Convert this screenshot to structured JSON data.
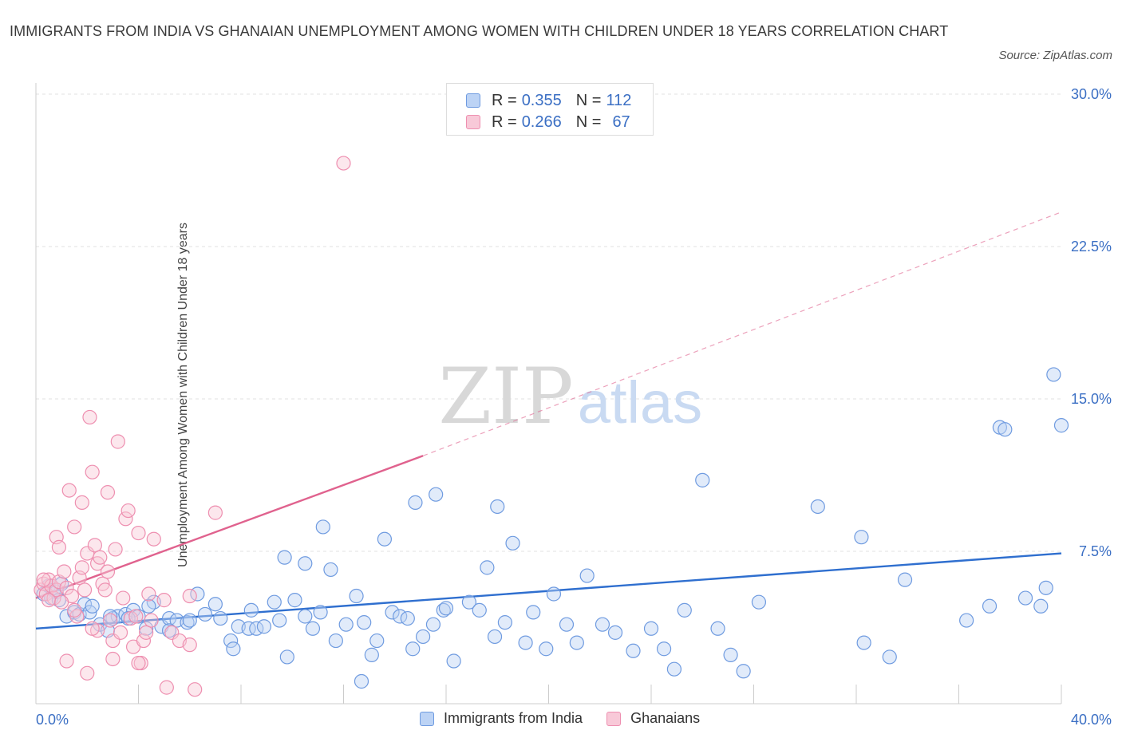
{
  "header": {
    "title": "IMMIGRANTS FROM INDIA VS GHANAIAN UNEMPLOYMENT AMONG WOMEN WITH CHILDREN UNDER 18 YEARS CORRELATION CHART",
    "source": "Source: ZipAtlas.com"
  },
  "legend": {
    "r_label": "R =",
    "n_label": "N =",
    "india_r": "0.355",
    "india_n": "112",
    "ghana_r": "0.266",
    "ghana_n": "67"
  },
  "watermark": {
    "zip": "ZIP",
    "atlas": "atlas"
  },
  "chart_data": {
    "type": "scatter",
    "ylabel": "Unemployment Among Women with Children Under 18 years",
    "xlim": [
      0,
      40
    ],
    "ylim": [
      0,
      30
    ],
    "x_ticks": [
      "0.0%",
      "40.0%"
    ],
    "y_ticks": [
      {
        "value": 7.5,
        "label": "7.5%"
      },
      {
        "value": 15,
        "label": "15.0%"
      },
      {
        "value": 22.5,
        "label": "22.5%"
      },
      {
        "value": 30,
        "label": "30.0%"
      }
    ],
    "grid": true,
    "series": [
      {
        "name": "Immigrants from India",
        "color": "#6f9be0",
        "fill": "#bcd3f5",
        "trend": {
          "x0": 0,
          "y0": 3.7,
          "x1": 40,
          "y1": 7.4,
          "color": "#2f6fcf"
        },
        "points": [
          [
            0.3,
            5.4
          ],
          [
            0.5,
            5.8
          ],
          [
            0.6,
            5.2
          ],
          [
            0.7,
            5.6
          ],
          [
            0.8,
            5.5
          ],
          [
            0.9,
            5.1
          ],
          [
            1.0,
            5.9
          ],
          [
            1.2,
            4.3
          ],
          [
            1.5,
            4.5
          ],
          [
            1.7,
            4.4
          ],
          [
            1.9,
            4.9
          ],
          [
            2.1,
            4.5
          ],
          [
            2.2,
            4.8
          ],
          [
            2.5,
            3.9
          ],
          [
            2.8,
            3.6
          ],
          [
            3.0,
            4.2
          ],
          [
            3.2,
            4.3
          ],
          [
            3.5,
            4.4
          ],
          [
            3.8,
            4.6
          ],
          [
            4.0,
            4.3
          ],
          [
            4.3,
            3.7
          ],
          [
            4.6,
            5.0
          ],
          [
            4.9,
            3.8
          ],
          [
            5.2,
            4.2
          ],
          [
            5.5,
            4.1
          ],
          [
            5.9,
            4.0
          ],
          [
            6.3,
            5.4
          ],
          [
            6.6,
            4.4
          ],
          [
            7.0,
            4.9
          ],
          [
            7.2,
            4.2
          ],
          [
            7.6,
            3.1
          ],
          [
            7.7,
            2.7
          ],
          [
            7.9,
            3.8
          ],
          [
            8.3,
            3.7
          ],
          [
            8.4,
            4.6
          ],
          [
            8.6,
            3.7
          ],
          [
            8.9,
            3.8
          ],
          [
            9.3,
            5.0
          ],
          [
            9.5,
            4.1
          ],
          [
            9.8,
            2.3
          ],
          [
            10.1,
            5.1
          ],
          [
            10.5,
            4.3
          ],
          [
            10.8,
            3.7
          ],
          [
            11.1,
            4.5
          ],
          [
            11.5,
            6.6
          ],
          [
            11.7,
            3.1
          ],
          [
            12.1,
            3.9
          ],
          [
            12.5,
            5.3
          ],
          [
            12.7,
            1.1
          ],
          [
            12.8,
            4.0
          ],
          [
            13.1,
            2.4
          ],
          [
            13.3,
            3.1
          ],
          [
            13.6,
            8.1
          ],
          [
            13.9,
            4.5
          ],
          [
            14.2,
            4.3
          ],
          [
            14.5,
            4.2
          ],
          [
            14.7,
            2.7
          ],
          [
            15.1,
            3.3
          ],
          [
            15.5,
            3.9
          ],
          [
            15.9,
            4.6
          ],
          [
            16.3,
            2.1
          ],
          [
            16.9,
            5.0
          ],
          [
            17.3,
            4.6
          ],
          [
            17.6,
            6.7
          ],
          [
            17.9,
            3.3
          ],
          [
            18.3,
            4.0
          ],
          [
            18.6,
            7.9
          ],
          [
            19.1,
            3.0
          ],
          [
            19.4,
            4.5
          ],
          [
            19.9,
            2.7
          ],
          [
            20.2,
            5.4
          ],
          [
            20.7,
            3.9
          ],
          [
            21.1,
            3.0
          ],
          [
            21.5,
            6.3
          ],
          [
            22.1,
            3.9
          ],
          [
            22.6,
            3.5
          ],
          [
            23.3,
            2.6
          ],
          [
            24.0,
            3.7
          ],
          [
            24.5,
            2.7
          ],
          [
            24.9,
            1.7
          ],
          [
            25.3,
            4.6
          ],
          [
            26.0,
            11.0
          ],
          [
            26.6,
            3.7
          ],
          [
            27.1,
            2.4
          ],
          [
            27.6,
            1.6
          ],
          [
            28.2,
            5.0
          ],
          [
            30.5,
            9.7
          ],
          [
            32.2,
            8.2
          ],
          [
            32.3,
            3.0
          ],
          [
            33.3,
            2.3
          ],
          [
            33.9,
            6.1
          ],
          [
            36.3,
            4.1
          ],
          [
            37.2,
            4.8
          ],
          [
            37.6,
            13.6
          ],
          [
            37.8,
            13.5
          ],
          [
            38.6,
            5.2
          ],
          [
            39.2,
            4.8
          ],
          [
            39.4,
            5.7
          ],
          [
            39.7,
            16.2
          ],
          [
            40.0,
            13.7
          ],
          [
            10.5,
            6.9
          ],
          [
            11.2,
            8.7
          ],
          [
            14.8,
            9.9
          ],
          [
            15.6,
            10.3
          ],
          [
            18.0,
            9.7
          ],
          [
            9.7,
            7.2
          ],
          [
            3.6,
            4.2
          ],
          [
            4.4,
            4.8
          ],
          [
            6.0,
            4.1
          ],
          [
            16.0,
            4.7
          ],
          [
            5.2,
            3.6
          ],
          [
            2.9,
            4.3
          ]
        ]
      },
      {
        "name": "Ghanaians",
        "color": "#ee8fb0",
        "fill": "#f8c9d8",
        "trend": {
          "x0": 0,
          "y0": 5.2,
          "x1": 15.1,
          "y1": 12.2,
          "color": "#e0628e",
          "dash_x1": 40,
          "dash_y1": 24.2
        },
        "points": [
          [
            0.2,
            5.6
          ],
          [
            0.3,
            5.9
          ],
          [
            0.4,
            5.4
          ],
          [
            0.5,
            6.1
          ],
          [
            0.6,
            5.8
          ],
          [
            0.7,
            5.2
          ],
          [
            0.8,
            5.6
          ],
          [
            0.9,
            6.0
          ],
          [
            0.3,
            6.1
          ],
          [
            0.8,
            8.2
          ],
          [
            0.9,
            7.7
          ],
          [
            1.1,
            6.5
          ],
          [
            1.2,
            5.7
          ],
          [
            1.3,
            10.5
          ],
          [
            1.4,
            5.3
          ],
          [
            1.5,
            8.7
          ],
          [
            1.6,
            4.3
          ],
          [
            1.7,
            6.2
          ],
          [
            1.8,
            6.7
          ],
          [
            1.8,
            9.9
          ],
          [
            1.9,
            5.6
          ],
          [
            2.0,
            7.4
          ],
          [
            2.1,
            14.1
          ],
          [
            2.2,
            11.4
          ],
          [
            2.3,
            7.8
          ],
          [
            2.4,
            6.9
          ],
          [
            2.4,
            3.6
          ],
          [
            2.5,
            7.2
          ],
          [
            2.6,
            5.9
          ],
          [
            2.7,
            5.6
          ],
          [
            2.8,
            6.5
          ],
          [
            2.8,
            10.4
          ],
          [
            2.9,
            4.1
          ],
          [
            3.0,
            3.1
          ],
          [
            3.1,
            7.6
          ],
          [
            3.2,
            12.9
          ],
          [
            3.3,
            3.5
          ],
          [
            3.4,
            5.2
          ],
          [
            3.5,
            9.1
          ],
          [
            3.6,
            9.5
          ],
          [
            3.7,
            4.2
          ],
          [
            3.8,
            2.8
          ],
          [
            3.9,
            4.3
          ],
          [
            4.0,
            8.4
          ],
          [
            4.1,
            2.0
          ],
          [
            4.2,
            3.1
          ],
          [
            4.3,
            3.5
          ],
          [
            4.4,
            5.4
          ],
          [
            4.5,
            4.1
          ],
          [
            4.6,
            8.1
          ],
          [
            5.0,
            5.1
          ],
          [
            5.1,
            0.8
          ],
          [
            5.3,
            3.5
          ],
          [
            5.6,
            3.1
          ],
          [
            6.0,
            5.3
          ],
          [
            6.0,
            2.9
          ],
          [
            6.2,
            0.7
          ],
          [
            7.0,
            9.4
          ],
          [
            12.0,
            26.6
          ],
          [
            0.5,
            5.1
          ],
          [
            1.0,
            5.0
          ],
          [
            1.5,
            4.6
          ],
          [
            1.2,
            2.1
          ],
          [
            2.0,
            1.5
          ],
          [
            3.0,
            2.2
          ],
          [
            4.0,
            2.0
          ],
          [
            2.2,
            3.7
          ]
        ]
      }
    ]
  }
}
